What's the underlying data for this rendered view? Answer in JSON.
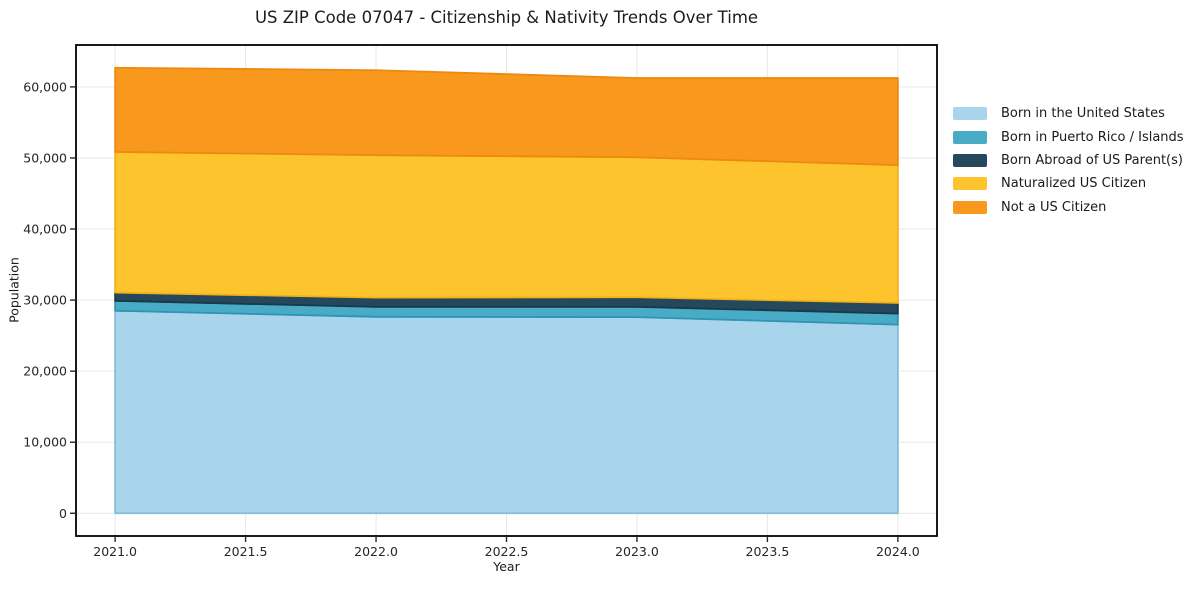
{
  "chart": {
    "title": "US ZIP Code 07047 - Citizenship & Nativity Trends Over Time"
  },
  "chart_data": {
    "type": "area",
    "stacked": true,
    "title": "US ZIP Code 07047 - Citizenship & Nativity Trends Over Time",
    "xlabel": "Year",
    "ylabel": "Population",
    "x": [
      2021.0,
      2022.0,
      2023.0,
      2024.0
    ],
    "series": [
      {
        "name": "Born in the United States",
        "color": "#a9d5ec",
        "edge_color": "#84bcd9",
        "values": [
          28500,
          27650,
          27600,
          26550
        ]
      },
      {
        "name": "Born in Puerto Rico / Islands",
        "color": "#48acc6",
        "edge_color": "#2f93b2",
        "values": [
          1400,
          1400,
          1450,
          1550
        ]
      },
      {
        "name": "Born Abroad of US Parent(s)",
        "color": "#25485c",
        "edge_color": "#1a3848",
        "values": [
          1150,
          1300,
          1350,
          1500
        ]
      },
      {
        "name": "Naturalized US Citizen",
        "color": "#fdc42e",
        "edge_color": "#f2b117",
        "values": [
          19800,
          20050,
          19700,
          19400
        ]
      },
      {
        "name": "Not a US Citizen",
        "color": "#f8991d",
        "edge_color": "#ec8a10",
        "values": [
          11850,
          11950,
          11150,
          12250
        ]
      }
    ],
    "stacked_totals": [
      62700,
      62350,
      61250,
      61250
    ],
    "x_ticks": [
      2021.0,
      2021.5,
      2022.0,
      2022.5,
      2023.0,
      2023.5,
      2024.0
    ],
    "x_tick_labels": [
      "2021.0",
      "2021.5",
      "2022.0",
      "2022.5",
      "2023.0",
      "2023.5",
      "2024.0"
    ],
    "y_ticks": [
      0,
      10000,
      20000,
      30000,
      40000,
      50000,
      60000
    ],
    "y_tick_labels": [
      "0",
      "10,000",
      "20,000",
      "30,000",
      "40,000",
      "50,000",
      "60,000"
    ],
    "xlim": [
      2020.85,
      2024.15
    ],
    "ylim": [
      -3200,
      65900
    ],
    "grid": true,
    "grid_color": "#e7e7e7",
    "frame_color": "#000000",
    "tick_color": "#262626",
    "legend_position": "right"
  }
}
